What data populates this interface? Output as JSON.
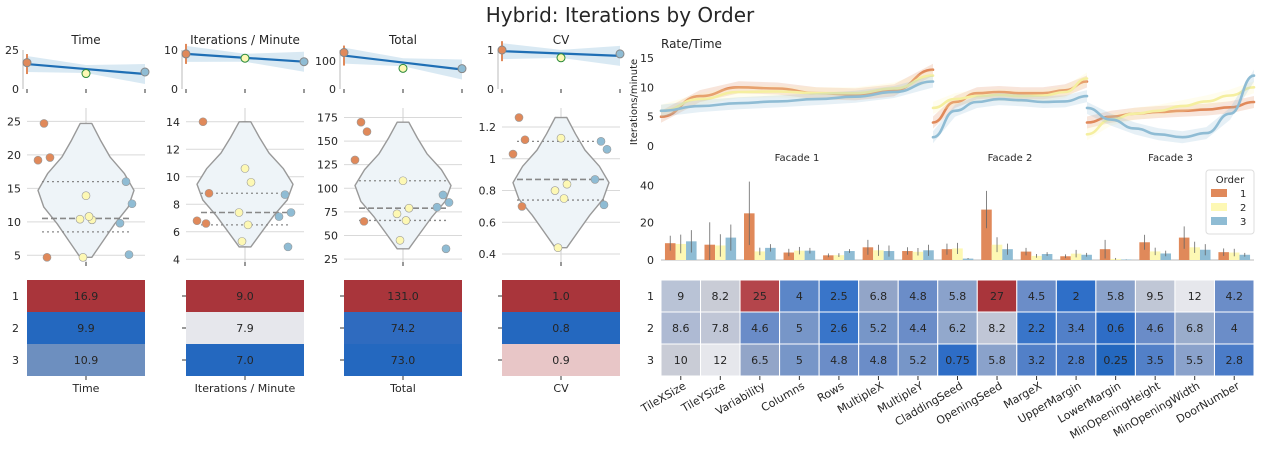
{
  "title": "Hybrid: Iterations by Order",
  "colors": {
    "order1": "#e0895a",
    "order2": "#fdf8b4",
    "order3": "#8fbcd4",
    "line": "#1f6fb5",
    "band": "#cfe3f0"
  },
  "chart_data": [
    {
      "type": "line",
      "panel": "trend",
      "title": "Time",
      "x": [
        1,
        2,
        3
      ],
      "values": [
        16.9,
        9.9,
        10.9
      ],
      "fit": [
        16.0,
        12.8,
        9.6
      ],
      "yticks": [
        0,
        25
      ],
      "ylim": [
        0,
        25
      ]
    },
    {
      "type": "line",
      "panel": "trend",
      "title": "Iterations / Minute",
      "x": [
        1,
        2,
        3
      ],
      "values": [
        9.0,
        7.9,
        7.0
      ],
      "fit": [
        9.0,
        8.0,
        7.0
      ],
      "yticks": [
        0,
        10
      ],
      "ylim": [
        0,
        10
      ]
    },
    {
      "type": "line",
      "panel": "trend",
      "title": "Total",
      "x": [
        1,
        2,
        3
      ],
      "values": [
        131.0,
        74.2,
        73.0
      ],
      "fit": [
        120,
        96,
        70
      ],
      "yticks": [
        0,
        100
      ],
      "ylim": [
        0,
        140
      ]
    },
    {
      "type": "line",
      "panel": "trend",
      "title": "CV",
      "x": [
        1,
        2,
        3
      ],
      "values": [
        1.0,
        0.8,
        0.9
      ],
      "fit": [
        0.97,
        0.9,
        0.85
      ],
      "yticks": [
        0,
        1
      ],
      "ylim": [
        0,
        1
      ]
    },
    {
      "type": "scatter",
      "panel": "violin",
      "title": "Time",
      "yticks": [
        5,
        10,
        15,
        20,
        25
      ],
      "ylim": [
        4,
        27
      ],
      "points": [
        {
          "x": 1,
          "y": 24.7
        },
        {
          "x": 1,
          "y": 19.6
        },
        {
          "x": 1,
          "y": 19.2
        },
        {
          "x": 1,
          "y": 4.7
        },
        {
          "x": 2,
          "y": 13.9
        },
        {
          "x": 2,
          "y": 10.3
        },
        {
          "x": 2,
          "y": 10.4
        },
        {
          "x": 2,
          "y": 10.8
        },
        {
          "x": 2,
          "y": 4.7
        },
        {
          "x": 3,
          "y": 16.0
        },
        {
          "x": 3,
          "y": 12.7
        },
        {
          "x": 3,
          "y": 9.8
        },
        {
          "x": 3,
          "y": 5.1
        }
      ],
      "quartiles": [
        8.5,
        10.5,
        16.0
      ]
    },
    {
      "type": "scatter",
      "panel": "violin",
      "title": "Iterations / Minute",
      "yticks": [
        4,
        6,
        8,
        10,
        12,
        14
      ],
      "ylim": [
        3.8,
        15
      ],
      "points": [
        {
          "x": 1,
          "y": 14.0
        },
        {
          "x": 1,
          "y": 8.8
        },
        {
          "x": 1,
          "y": 6.8
        },
        {
          "x": 1,
          "y": 6.6
        },
        {
          "x": 2,
          "y": 10.6
        },
        {
          "x": 2,
          "y": 9.6
        },
        {
          "x": 2,
          "y": 7.4
        },
        {
          "x": 2,
          "y": 6.5
        },
        {
          "x": 2,
          "y": 5.3
        },
        {
          "x": 3,
          "y": 8.7
        },
        {
          "x": 3,
          "y": 7.4
        },
        {
          "x": 3,
          "y": 7.1
        },
        {
          "x": 3,
          "y": 4.9
        }
      ],
      "quartiles": [
        6.5,
        7.4,
        8.8
      ]
    },
    {
      "type": "scatter",
      "panel": "violin",
      "title": "Total",
      "yticks": [
        25,
        50,
        75,
        100,
        125,
        150,
        175
      ],
      "ylim": [
        22,
        185
      ],
      "points": [
        {
          "x": 1,
          "y": 170
        },
        {
          "x": 1,
          "y": 160
        },
        {
          "x": 1,
          "y": 130
        },
        {
          "x": 1,
          "y": 65
        },
        {
          "x": 2,
          "y": 108
        },
        {
          "x": 2,
          "y": 79
        },
        {
          "x": 2,
          "y": 73
        },
        {
          "x": 2,
          "y": 66
        },
        {
          "x": 2,
          "y": 45
        },
        {
          "x": 3,
          "y": 93
        },
        {
          "x": 3,
          "y": 85
        },
        {
          "x": 3,
          "y": 80
        },
        {
          "x": 3,
          "y": 36
        }
      ],
      "quartiles": [
        66,
        79,
        108
      ]
    },
    {
      "type": "scatter",
      "panel": "violin",
      "title": "CV",
      "yticks": [
        0.4,
        0.6,
        0.8,
        1.0,
        1.2
      ],
      "ylim": [
        0.35,
        1.32
      ],
      "points": [
        {
          "x": 1,
          "y": 1.26
        },
        {
          "x": 1,
          "y": 1.12
        },
        {
          "x": 1,
          "y": 1.03
        },
        {
          "x": 1,
          "y": 0.7
        },
        {
          "x": 2,
          "y": 1.13
        },
        {
          "x": 2,
          "y": 0.84
        },
        {
          "x": 2,
          "y": 0.8
        },
        {
          "x": 2,
          "y": 0.75
        },
        {
          "x": 2,
          "y": 0.44
        },
        {
          "x": 3,
          "y": 1.11
        },
        {
          "x": 3,
          "y": 1.06
        },
        {
          "x": 3,
          "y": 0.87
        },
        {
          "x": 3,
          "y": 0.71
        }
      ],
      "quartiles": [
        0.74,
        0.87,
        1.11
      ]
    },
    {
      "type": "heatmap",
      "panel": "summary",
      "xlabel": "Time",
      "rows": [
        "1",
        "2",
        "3"
      ],
      "values": [
        16.9,
        9.9,
        10.9
      ],
      "labels": [
        "16.9",
        "9.9",
        "10.9"
      ],
      "cell_colors": [
        "#a9353b",
        "#2468bf",
        "#6d8fbf"
      ]
    },
    {
      "type": "heatmap",
      "panel": "summary",
      "xlabel": "Iterations / Minute",
      "rows": [
        "1",
        "2",
        "3"
      ],
      "values": [
        9.0,
        7.9,
        7.0
      ],
      "labels": [
        "9.0",
        "7.9",
        "7.0"
      ],
      "cell_colors": [
        "#a9353b",
        "#e6e7ec",
        "#2468bf"
      ]
    },
    {
      "type": "heatmap",
      "panel": "summary",
      "xlabel": "Total",
      "rows": [
        "1",
        "2",
        "3"
      ],
      "values": [
        131.0,
        74.2,
        73.0
      ],
      "labels": [
        "131.0",
        "74.2",
        "73.0"
      ],
      "cell_colors": [
        "#a9353b",
        "#2f6bbf",
        "#2468bf"
      ]
    },
    {
      "type": "heatmap",
      "panel": "summary",
      "xlabel": "CV",
      "rows": [
        "1",
        "2",
        "3"
      ],
      "values": [
        1.0,
        0.8,
        0.9
      ],
      "labels": [
        "1.0",
        "0.8",
        "0.9"
      ],
      "cell_colors": [
        "#a9353b",
        "#2468bf",
        "#e8c6c7"
      ]
    },
    {
      "type": "line",
      "panel": "rate",
      "title": "Rate/Time",
      "ylabel": "Iterations/minute",
      "yticks": [
        0,
        5,
        10,
        15
      ],
      "ylim": [
        0,
        15
      ],
      "facets": [
        {
          "name": "Facade 1",
          "series": [
            {
              "order": "1",
              "y": [
                5.0,
                8.5,
                10.0,
                9.8,
                9.0,
                8.8,
                9.5,
                13.0
              ]
            },
            {
              "order": "2",
              "y": [
                6.0,
                8.0,
                9.2,
                9.3,
                9.0,
                9.0,
                9.8,
                12.0
              ]
            },
            {
              "order": "3",
              "y": [
                6.0,
                6.8,
                7.3,
                7.6,
                8.0,
                8.4,
                9.2,
                11.0
              ]
            }
          ]
        },
        {
          "name": "Facade 2",
          "series": [
            {
              "order": "1",
              "y": [
                4.0,
                7.5,
                9.0,
                9.2,
                9.0,
                9.0,
                9.5,
                11.0
              ]
            },
            {
              "order": "2",
              "y": [
                6.5,
                8.0,
                8.5,
                8.7,
                8.5,
                8.6,
                9.2,
                11.5
              ]
            },
            {
              "order": "3",
              "y": [
                1.5,
                6.0,
                7.5,
                8.0,
                7.8,
                7.5,
                7.6,
                8.5
              ]
            }
          ]
        },
        {
          "name": "Facade 3",
          "series": [
            {
              "order": "1",
              "y": [
                4.0,
                5.0,
                5.5,
                5.8,
                6.0,
                6.2,
                6.6,
                7.5
              ]
            },
            {
              "order": "2",
              "y": [
                2.0,
                4.5,
                5.5,
                6.0,
                6.8,
                7.6,
                8.6,
                10.0
              ]
            },
            {
              "order": "3",
              "y": [
                6.5,
                4.5,
                3.0,
                2.0,
                1.5,
                2.2,
                5.5,
                12.0
              ]
            }
          ]
        }
      ]
    },
    {
      "type": "bar",
      "panel": "parameters",
      "legend_title": "Order",
      "legend_placement": "top-right",
      "yticks": [
        0,
        20,
        40
      ],
      "ylim": [
        0,
        45
      ],
      "categories": [
        "TileXSize",
        "TileYSize",
        "Variability",
        "Columns",
        "Rows",
        "MultipleX",
        "MultipleY",
        "CladdingSeed",
        "OpeningSeed",
        "MargeX",
        "UpperMargin",
        "LowerMargin",
        "MinOpeningHeight",
        "MinOpeningWidth",
        "DoorNumber"
      ],
      "series": [
        {
          "name": "1",
          "values": [
            9,
            8.2,
            25,
            4,
            2.5,
            6.8,
            4.8,
            5.8,
            27,
            4.5,
            2,
            5.8,
            9.5,
            12,
            4.2
          ],
          "err": [
            4,
            12,
            17,
            2,
            1,
            4,
            2,
            3,
            10,
            2,
            1,
            5,
            4,
            6,
            2
          ]
        },
        {
          "name": "2",
          "values": [
            8.6,
            7.8,
            4.6,
            5,
            2.6,
            5.2,
            4.4,
            6.2,
            8.2,
            2.2,
            3.4,
            0.6,
            4.6,
            6.8,
            4
          ],
          "err": [
            5,
            6,
            2,
            2,
            1,
            3,
            2,
            3,
            4,
            1,
            2,
            0.5,
            2,
            3,
            2
          ]
        },
        {
          "name": "3",
          "values": [
            10,
            12,
            6.5,
            5,
            4.8,
            4.8,
            5.2,
            0.75,
            5.8,
            3.2,
            2.8,
            0.25,
            3.5,
            5.5,
            2.8
          ],
          "err": [
            6,
            7,
            2,
            1.5,
            1,
            3,
            3,
            0.3,
            3,
            1,
            1,
            0.1,
            1.5,
            3,
            1
          ]
        }
      ]
    },
    {
      "type": "heatmap",
      "panel": "parameter-table",
      "rows": [
        "1",
        "2",
        "3"
      ],
      "columns": [
        "TileXSize",
        "TileYSize",
        "Variability",
        "Columns",
        "Rows",
        "MultipleX",
        "MultipleY",
        "CladdingSeed",
        "OpeningSeed",
        "MargeX",
        "UpperMargin",
        "LowerMargin",
        "MinOpeningHeight",
        "MinOpeningWidth",
        "DoorNumber"
      ],
      "labels": [
        [
          "9",
          "8.2",
          "25",
          "4",
          "2.5",
          "6.8",
          "4.8",
          "5.8",
          "27",
          "4.5",
          "2",
          "5.8",
          "9.5",
          "12",
          "4.2"
        ],
        [
          "8.6",
          "7.8",
          "4.6",
          "5",
          "2.6",
          "5.2",
          "4.4",
          "6.2",
          "8.2",
          "2.2",
          "3.4",
          "0.6",
          "4.6",
          "6.8",
          "4"
        ],
        [
          "10",
          "12",
          "6.5",
          "5",
          "4.8",
          "4.8",
          "5.2",
          "0.75",
          "5.8",
          "3.2",
          "2.8",
          "0.25",
          "3.5",
          "5.5",
          "2.8"
        ]
      ],
      "cell_colors": [
        [
          "#b9c3d6",
          "#c9ccd6",
          "#b4454b",
          "#5b86c8",
          "#3975c9",
          "#92a5c8",
          "#6b8dc8",
          "#8aa2cb",
          "#a9353b",
          "#6b8dc8",
          "#2f6fc8",
          "#8aa2cb",
          "#c0c7d6",
          "#e6e7ec",
          "#6b8dc8"
        ],
        [
          "#aebad3",
          "#c0c6d6",
          "#6a8cc8",
          "#7796c8",
          "#3975c9",
          "#7796c8",
          "#6b8dc8",
          "#92a8cc",
          "#c0c6d6",
          "#3975c9",
          "#5280c8",
          "#2e6dc6",
          "#6a8cc8",
          "#9aadcc",
          "#6b8dc8"
        ],
        [
          "#c9ccd6",
          "#e6e7ec",
          "#92a5c8",
          "#7796c8",
          "#6b8dc8",
          "#6b8dc8",
          "#7796c8",
          "#2e6dc6",
          "#8aa2cb",
          "#5280c8",
          "#4b7cc8",
          "#2468bf",
          "#5280c8",
          "#8aa2cb",
          "#4b7cc8"
        ]
      ]
    }
  ]
}
